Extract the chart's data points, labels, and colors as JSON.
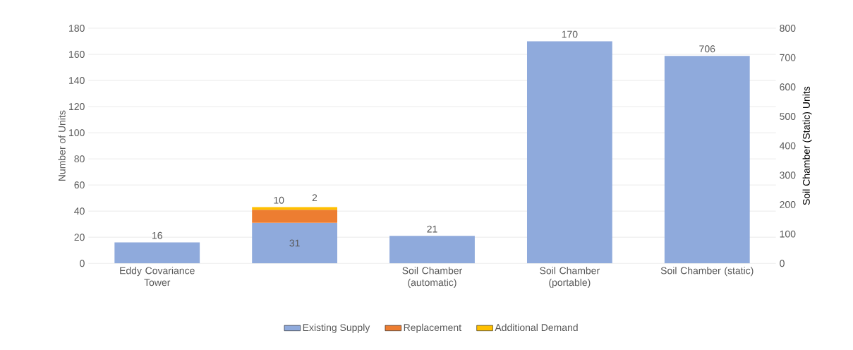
{
  "chart_data": {
    "type": "bar",
    "stacked": true,
    "categories": [
      "Eddy Covariance Tower",
      null,
      "Soil Chamber (automatic)",
      "Soil Chamber (portable)",
      "Soil Chamber (static)"
    ],
    "series": [
      {
        "name": "Existing Supply",
        "color": "#8faadc",
        "values": [
          16,
          31,
          21,
          170,
          null
        ]
      },
      {
        "name": "Replacement",
        "color": "#ed7d31",
        "values": [
          null,
          10,
          null,
          null,
          null
        ]
      },
      {
        "name": "Additional Demand",
        "color": "#ffc000",
        "values": [
          null,
          2,
          null,
          null,
          null
        ]
      },
      {
        "color": "#8faadc",
        "axis": "y2",
        "values": [
          null,
          null,
          null,
          null,
          706
        ]
      }
    ],
    "ylabel": "Number of Units",
    "y2label": "Soil Chamber (Static) Units",
    "ylim": [
      0,
      180
    ],
    "yticks": [
      0,
      20,
      40,
      60,
      80,
      100,
      120,
      140,
      160,
      180
    ],
    "y2lim": [
      0,
      800
    ],
    "y2ticks": [
      0,
      100,
      200,
      300,
      400,
      500,
      600,
      700,
      800
    ],
    "grid": "y",
    "legend": "bottom",
    "data_labels": true
  }
}
